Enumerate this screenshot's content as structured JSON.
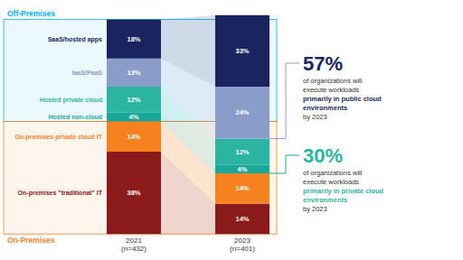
{
  "chart_data": {
    "type": "bar",
    "stacked": true,
    "data_labels": true,
    "tick_labels": "x",
    "categories": [
      "2021\n(n=432)",
      "2023\n(n=401)"
    ],
    "ylim": [
      -12,
      108
    ],
    "series": [
      {
        "name": "On-premises \"traditional\" IT",
        "color": "#8b1a1a",
        "values": [
          38,
          14
        ],
        "value_labels": [
          "38%",
          "14%"
        ]
      },
      {
        "name": "On-premises private cloud IT",
        "color": "#f5821f",
        "values": [
          14,
          14
        ],
        "value_labels": [
          "14%",
          "14%"
        ]
      },
      {
        "name": "Hosted non-cloud",
        "color": "#18a89a",
        "values": [
          4,
          4
        ],
        "value_labels": [
          "4%",
          "4%"
        ]
      },
      {
        "name": "Hosted private cloud",
        "color": "#2bb5a0",
        "values": [
          12,
          12
        ],
        "value_labels": [
          "12%",
          "12%"
        ]
      },
      {
        "name": "IaaS/PaaS",
        "color": "#8a9cc9",
        "values": [
          13,
          24
        ],
        "value_labels": [
          "13%",
          "24%"
        ]
      },
      {
        "name": "SaaS/hosted apps",
        "color": "#1a2560",
        "values": [
          18,
          33
        ],
        "value_labels": [
          "18%",
          "33%"
        ]
      }
    ],
    "annotations": [
      {
        "text": "Off-Premises",
        "color": "#00b0f0"
      },
      {
        "text": "On-Premises",
        "color": "#f5821f"
      },
      {
        "text": "57%",
        "color": "#1a2560"
      },
      {
        "text": "of organizations will\nexecute workloads",
        "color": "#333333"
      },
      {
        "text": "primarily in public cloud\nenvironments",
        "color": "#1a2560"
      },
      {
        "text": "by 2023",
        "color": "#333333"
      },
      {
        "text": "30%",
        "color": "#2bb5a0"
      },
      {
        "text": "of organizations will\nexecute workloads",
        "color": "#333333"
      },
      {
        "text": "primarily in private cloud\nenvironments",
        "color": "#2bb5a0"
      },
      {
        "text": "by 2023",
        "color": "#333333"
      }
    ]
  }
}
